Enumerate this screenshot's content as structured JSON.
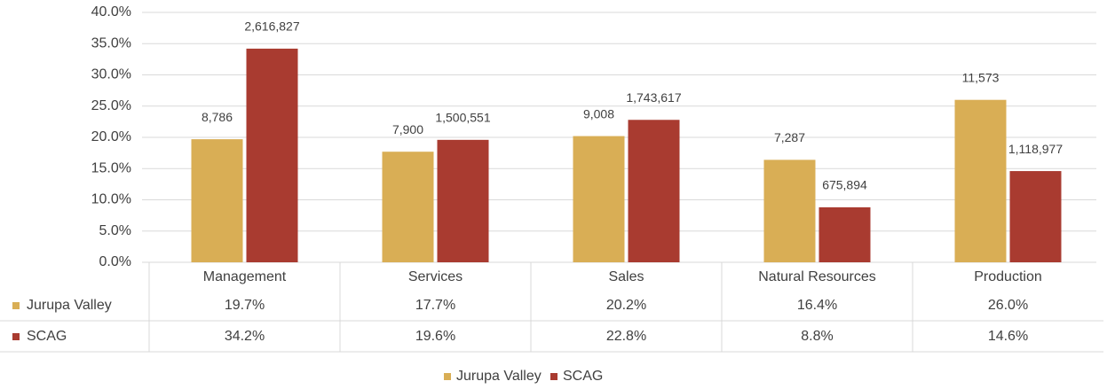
{
  "chart_data": {
    "type": "bar",
    "categories": [
      "Management",
      "Services",
      "Sales",
      "Natural Resources",
      "Production"
    ],
    "series": [
      {
        "name": "Jurupa Valley",
        "color": "#d9ae55",
        "values": [
          19.7,
          17.7,
          20.2,
          16.4,
          26.0
        ],
        "value_labels": [
          "19.7%",
          "17.7%",
          "20.2%",
          "16.4%",
          "26.0%"
        ],
        "data_labels": [
          "8,786",
          "7,900",
          "9,008",
          "7,287",
          "11,573"
        ]
      },
      {
        "name": "SCAG",
        "color": "#a93b30",
        "values": [
          34.2,
          19.6,
          22.8,
          8.8,
          14.6
        ],
        "value_labels": [
          "34.2%",
          "19.6%",
          "22.8%",
          "8.8%",
          "14.6%"
        ],
        "data_labels": [
          "2,616,827",
          "1,500,551",
          "1,743,617",
          "675,894",
          "1,118,977"
        ]
      }
    ],
    "ylim": [
      0,
      40
    ],
    "yticks": [
      {
        "value": 0,
        "label": "0.0%"
      },
      {
        "value": 5,
        "label": "5.0%"
      },
      {
        "value": 10,
        "label": "10.0%"
      },
      {
        "value": 15,
        "label": "15.0%"
      },
      {
        "value": 20,
        "label": "20.0%"
      },
      {
        "value": 25,
        "label": "25.0%"
      },
      {
        "value": 30,
        "label": "30.0%"
      },
      {
        "value": 35,
        "label": "35.0%"
      },
      {
        "value": 40,
        "label": "40.0%"
      }
    ],
    "grid": true,
    "legend": "bottom",
    "data_table": true
  }
}
